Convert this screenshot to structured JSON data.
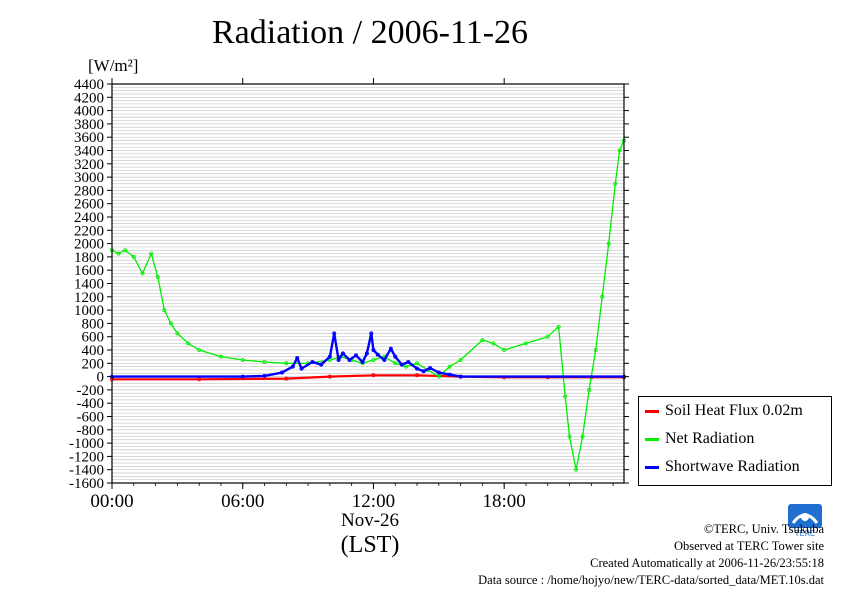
{
  "chart_data": {
    "type": "line",
    "title": "Radiation / 2006-11-26",
    "ylabel_unit": "[W/m²]",
    "xlabel_date": "Nov-26",
    "xlabel_unit": "(LST)",
    "ylim": [
      -1600,
      4400
    ],
    "ytick_step": 200,
    "yticks": [
      "4400",
      "4200",
      "4000",
      "3800",
      "3600",
      "3400",
      "3200",
      "3000",
      "2800",
      "2600",
      "2400",
      "2200",
      "2000",
      "1800",
      "1600",
      "1400",
      "1200",
      "1000",
      "800",
      "600",
      "400",
      "200",
      "0",
      "-200",
      "-400",
      "-600",
      "-800",
      "-1000",
      "-1200",
      "-1400",
      "-1600"
    ],
    "xticks": [
      {
        "label": "00:00",
        "hour": 0
      },
      {
        "label": "06:00",
        "hour": 6
      },
      {
        "label": "12:00",
        "hour": 12
      },
      {
        "label": "18:00",
        "hour": 18
      }
    ],
    "grid": true,
    "legend_position": "right",
    "series": [
      {
        "name": "Soil Heat Flux 0.02m",
        "color": "#ff0000",
        "x_hours": [
          0,
          4,
          8,
          10,
          12,
          14,
          16,
          18,
          20,
          22,
          23.5
        ],
        "values": [
          -40,
          -40,
          -30,
          0,
          20,
          20,
          0,
          -10,
          -10,
          -10,
          -10
        ]
      },
      {
        "name": "Net Radiation",
        "color": "#00ee00",
        "x_hours": [
          0,
          0.3,
          0.6,
          1.0,
          1.4,
          1.8,
          2.1,
          2.4,
          2.7,
          3.0,
          3.5,
          4.0,
          5.0,
          6.0,
          7.0,
          8.0,
          9.0,
          10.0,
          10.5,
          11.0,
          11.5,
          12.0,
          12.5,
          13.0,
          13.5,
          14.0,
          14.5,
          15.0,
          15.5,
          16.0,
          17.0,
          17.5,
          18.0,
          19.0,
          20.0,
          20.5,
          20.8,
          21.0,
          21.3,
          21.6,
          21.9,
          22.2,
          22.5,
          22.8,
          23.1,
          23.3,
          23.5
        ],
        "values": [
          1900,
          1850,
          1900,
          1800,
          1550,
          1850,
          1500,
          1000,
          800,
          650,
          500,
          400,
          300,
          250,
          220,
          200,
          200,
          250,
          300,
          250,
          200,
          250,
          300,
          200,
          150,
          200,
          100,
          0,
          150,
          250,
          550,
          500,
          400,
          500,
          600,
          750,
          -300,
          -900,
          -1400,
          -900,
          -200,
          400,
          1200,
          2000,
          2900,
          3400,
          3550
        ]
      },
      {
        "name": "Shortwave Radiation",
        "color": "#0000ff",
        "x_hours": [
          0,
          6.0,
          7.0,
          7.8,
          8.3,
          8.5,
          8.7,
          9.2,
          9.6,
          10.0,
          10.2,
          10.4,
          10.6,
          10.9,
          11.2,
          11.5,
          11.7,
          11.9,
          12.0,
          12.2,
          12.5,
          12.8,
          13.0,
          13.3,
          13.6,
          14.0,
          14.3,
          14.6,
          15.0,
          15.5,
          16.0,
          23.5
        ],
        "values": [
          0,
          0,
          10,
          60,
          150,
          280,
          120,
          220,
          180,
          300,
          650,
          250,
          350,
          250,
          320,
          220,
          350,
          650,
          400,
          330,
          250,
          420,
          300,
          180,
          220,
          120,
          80,
          130,
          60,
          30,
          0,
          0
        ]
      }
    ]
  },
  "footer": {
    "copyright": "©TERC, Univ. Tsukuba",
    "site": "Observed at TERC Tower site",
    "created": "Created Automatically at 2006-11-26/23:55:18",
    "source": "Data source : /home/hojyo/new/TERC-data/sorted_data/MET.10s.dat"
  },
  "logo_text": "TERC",
  "logo_color": "#1e6fd0"
}
